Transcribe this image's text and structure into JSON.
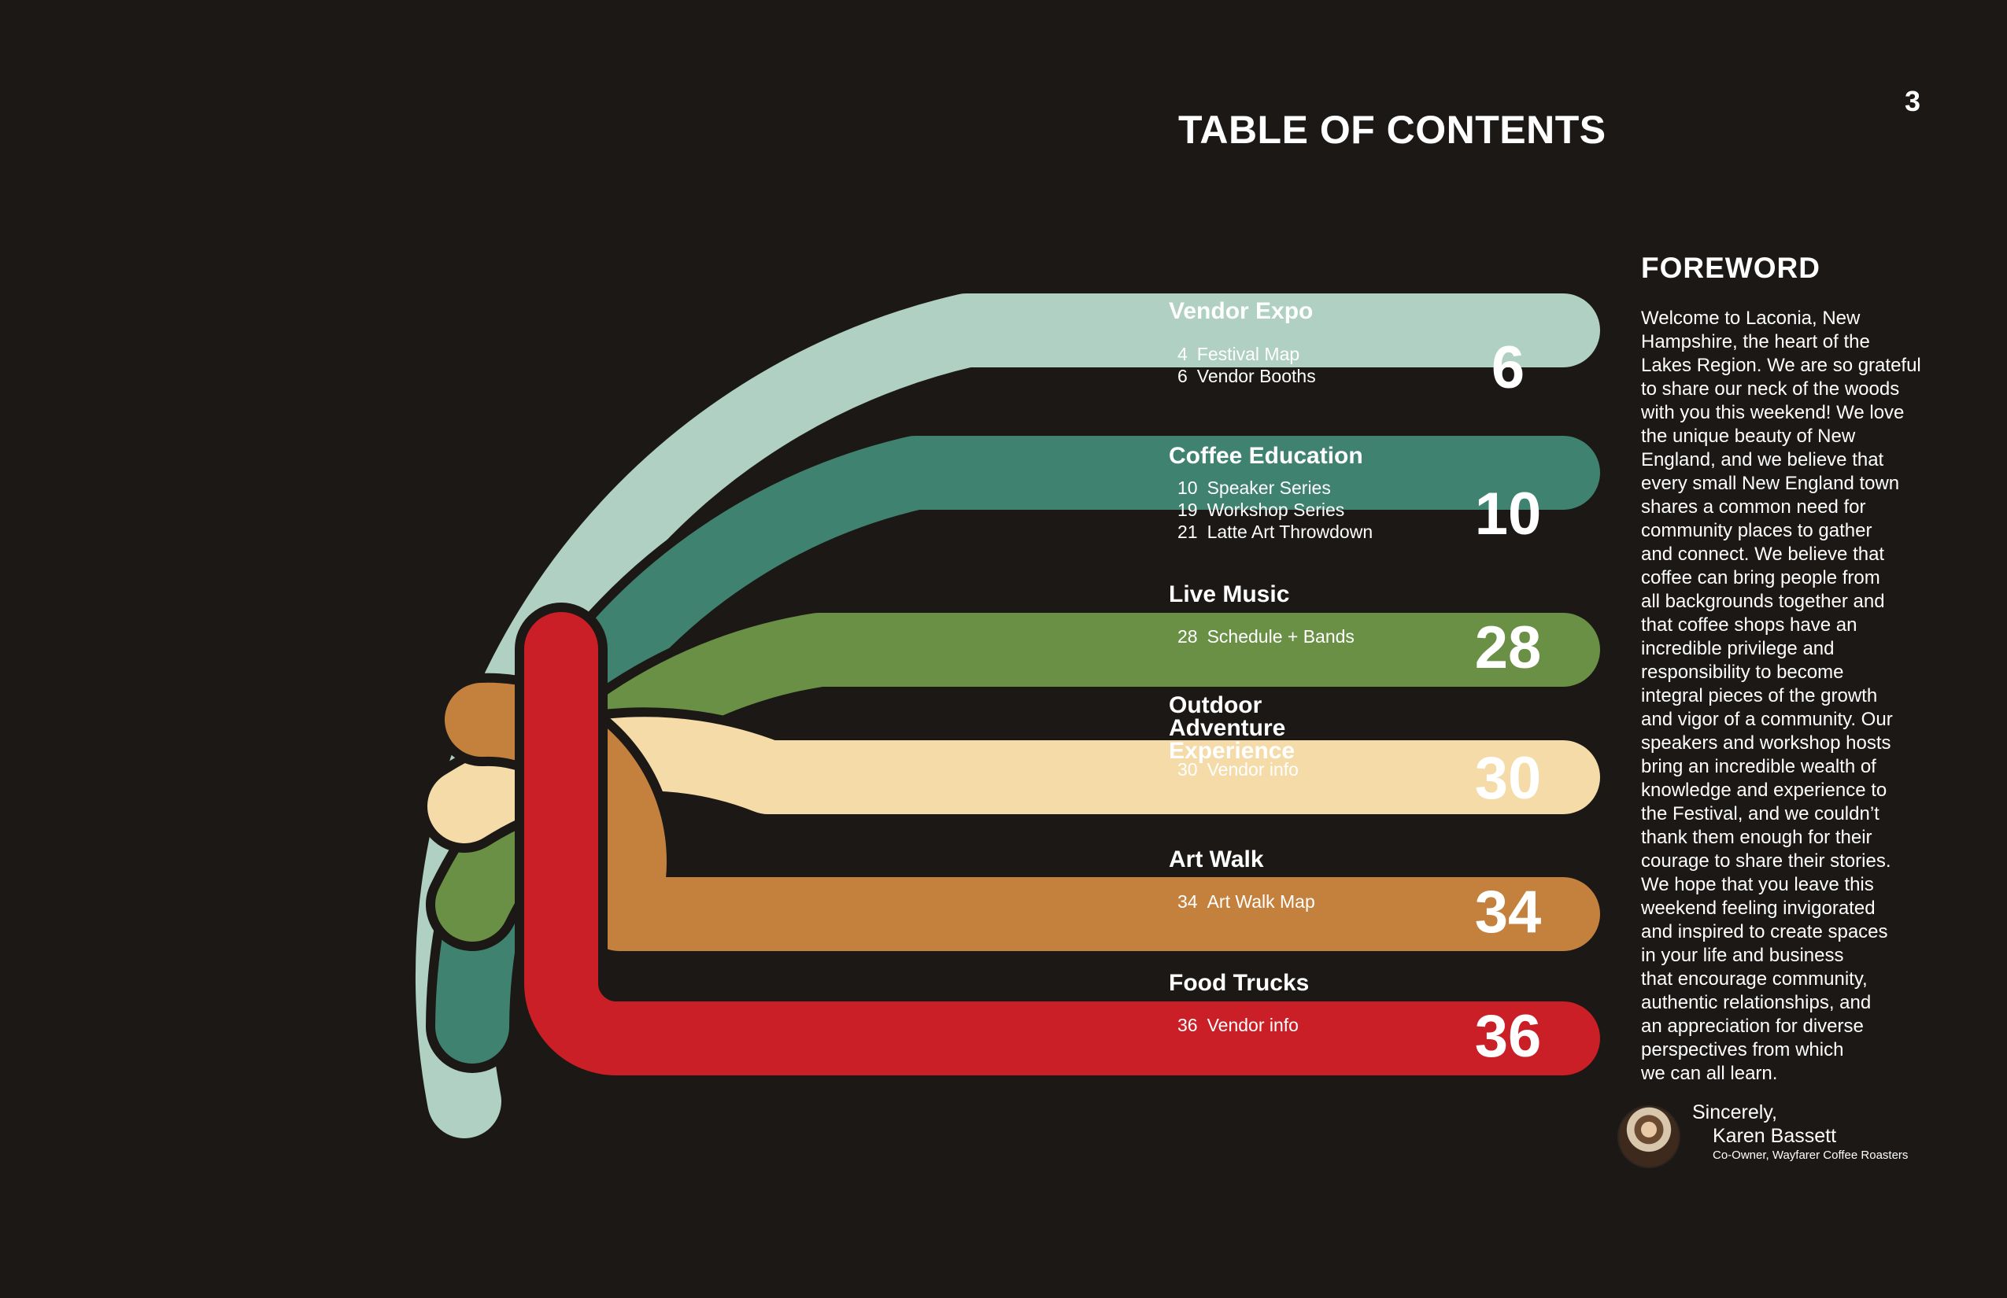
{
  "page_number": "3",
  "toc_title": "TABLE OF CONTENTS",
  "colors": {
    "background": "#1b1816",
    "mint": "#afd0c3",
    "teal": "#3f826f",
    "olive": "#6a9045",
    "cream": "#f4dba8",
    "copper": "#c4813d",
    "red": "#cb1f27"
  },
  "sections": [
    {
      "title": "Vendor Expo",
      "page": "6",
      "color": "#afd0c3",
      "text_color": "#ffffff",
      "items": [
        {
          "num": "4",
          "label": "Festival Map"
        },
        {
          "num": "6",
          "label": "Vendor Booths"
        }
      ]
    },
    {
      "title": "Coffee Education",
      "page": "10",
      "color": "#3f826f",
      "text_color": "#ffffff",
      "items": [
        {
          "num": "10",
          "label": "Speaker Series"
        },
        {
          "num": "19",
          "label": "Workshop Series"
        },
        {
          "num": "21",
          "label": "Latte Art Throwdown"
        }
      ]
    },
    {
      "title": "Live Music",
      "page": "28",
      "color": "#6a9045",
      "text_color": "#ffffff",
      "items": [
        {
          "num": "28",
          "label": "Schedule + Bands"
        }
      ]
    },
    {
      "title": "Outdoor Adventure\nExperience",
      "page": "30",
      "color": "#f4dba8",
      "text_color": "#ffffff",
      "items": [
        {
          "num": "30",
          "label": "Vendor info"
        }
      ]
    },
    {
      "title": "Art Walk",
      "page": "34",
      "color": "#c4813d",
      "text_color": "#ffffff",
      "items": [
        {
          "num": "34",
          "label": "Art Walk Map"
        }
      ]
    },
    {
      "title": "Food Trucks",
      "page": "36",
      "color": "#cb1f27",
      "text_color": "#ffffff",
      "items": [
        {
          "num": "36",
          "label": "Vendor info"
        }
      ]
    }
  ],
  "foreword": {
    "heading": "FOREWORD",
    "lines": [
      "Welcome to Laconia, New",
      "Hampshire, the heart of the",
      "Lakes Region. We are so grateful",
      "to share our neck of the woods",
      "with you this weekend! We love",
      "the unique beauty of New",
      "England, and we believe that",
      "every small New England town",
      "shares a common need for",
      "community places to gather",
      "and connect. We believe that",
      "coffee can bring people from",
      "all backgrounds together and",
      "that coffee shops have an",
      "incredible privilege and",
      "responsibility to become",
      "integral pieces of the growth",
      "and vigor of a community. Our",
      "speakers and workshop hosts",
      "bring an incredible wealth of",
      "knowledge and experience to",
      "the Festival, and we couldn’t",
      "thank them enough for their",
      "courage to share their stories.",
      "We hope that you leave this",
      "weekend feeling invigorated",
      "and inspired to create spaces",
      "in your life and business",
      "that encourage community,",
      "authentic relationships, and",
      "an appreciation for diverse",
      "perspectives from which",
      "we can all learn."
    ],
    "signoff": "Sincerely,",
    "signer_name": "Karen Bassett",
    "signer_role": "Co-Owner, Wayfarer Coffee Roasters"
  }
}
